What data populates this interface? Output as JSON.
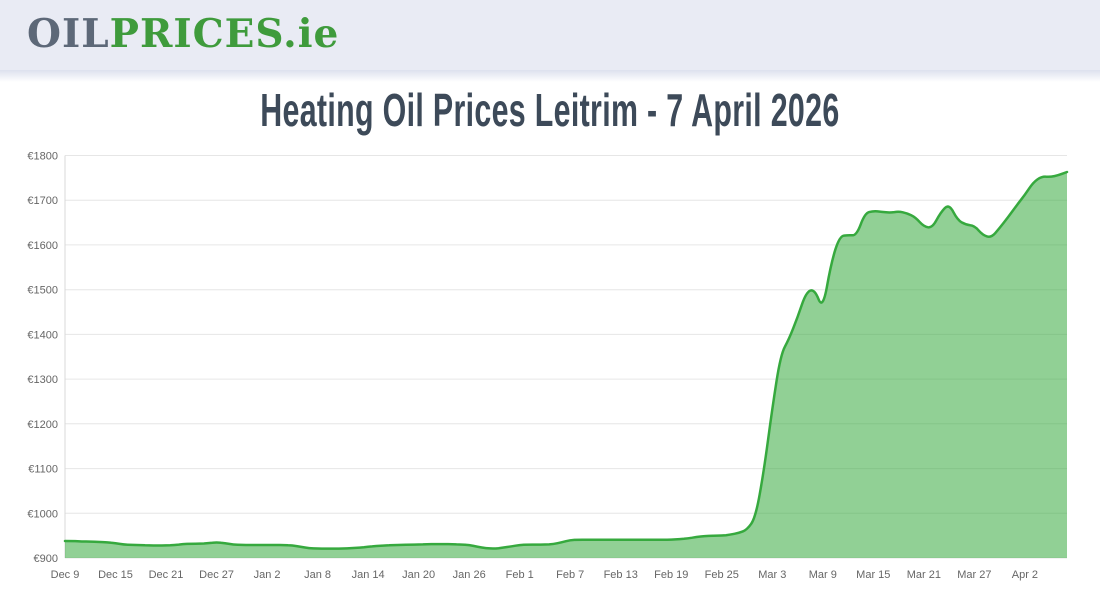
{
  "header": {
    "logo_oil": "OIL",
    "logo_prices": "PRICES.ie"
  },
  "page_title": "Heating Oil Prices Leitrim - 7 April 2026",
  "chart_data": {
    "type": "area",
    "title": "Heating Oil Prices Leitrim - 7 April 2026",
    "xlabel": "",
    "ylabel": "",
    "currency_prefix": "€",
    "ylim": [
      900,
      1800
    ],
    "y_tick_step": 100,
    "y_tick_labels": [
      "€900",
      "€1000",
      "€1100",
      "€1200",
      "€1300",
      "€1400",
      "€1500",
      "€1600",
      "€1700",
      "€1800"
    ],
    "x_tick_labels": [
      "Dec 9",
      "Dec 15",
      "Dec 21",
      "Dec 27",
      "Jan 2",
      "Jan 8",
      "Jan 14",
      "Jan 20",
      "Jan 26",
      "Feb 1",
      "Feb 7",
      "Feb 13",
      "Feb 19",
      "Feb 25",
      "Mar 3",
      "Mar 9",
      "Mar 15",
      "Mar 21",
      "Mar 27",
      "Apr 2"
    ],
    "x_tick_interval_days": 6,
    "x_range": "Dec 9 to Apr 7, daily points",
    "grid": "horizontal",
    "legend": "none",
    "values": [
      938,
      938,
      937,
      937,
      936,
      935,
      933,
      930,
      929,
      929,
      928,
      928,
      928,
      929,
      931,
      932,
      932,
      933,
      935,
      933,
      930,
      929,
      929,
      929,
      929,
      929,
      929,
      928,
      925,
      922,
      921,
      921,
      921,
      921,
      922,
      923,
      925,
      927,
      928,
      929,
      929,
      930,
      930,
      931,
      931,
      931,
      931,
      930,
      929,
      925,
      922,
      921,
      923,
      926,
      929,
      930,
      930,
      930,
      931,
      935,
      940,
      941,
      941,
      941,
      941,
      941,
      941,
      941,
      941,
      941,
      941,
      941,
      941,
      942,
      944,
      947,
      949,
      950,
      950,
      952,
      956,
      963,
      990,
      1095,
      1235,
      1355,
      1390,
      1438,
      1494,
      1502,
      1455,
      1560,
      1620,
      1622,
      1621,
      1671,
      1676,
      1674,
      1672,
      1675,
      1671,
      1662,
      1641,
      1638,
      1673,
      1692,
      1656,
      1645,
      1643,
      1622,
      1616,
      1638,
      1662,
      1688,
      1712,
      1740,
      1753,
      1752,
      1756,
      1763
    ],
    "colors": {
      "line": "#36a93e",
      "fill": "#36a93e",
      "fill_opacity": 0.55,
      "grid": "#e6e6e6",
      "axis": "#d9d9d9",
      "tick_text": "#666666",
      "title_text": "#3d4a59",
      "header_bg": "#e9ebf4",
      "logo_gray": "#5d6878",
      "logo_green": "#3f9b3c"
    }
  }
}
